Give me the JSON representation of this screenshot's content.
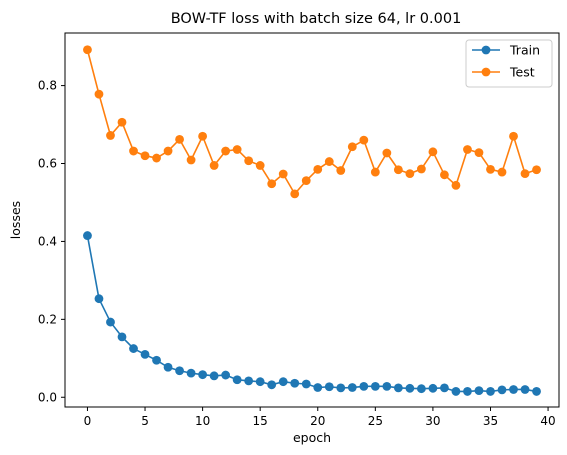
{
  "chart_data": {
    "type": "line",
    "title": "BOW-TF loss with batch size 64, lr 0.001",
    "xlabel": "epoch",
    "ylabel": "losses",
    "xlim": [
      -1.95,
      40.95
    ],
    "ylim": [
      -0.025,
      0.935
    ],
    "xticks": [
      0,
      5,
      10,
      15,
      20,
      25,
      30,
      35,
      40
    ],
    "xtick_labels": [
      "0",
      "5",
      "10",
      "15",
      "20",
      "25",
      "30",
      "35",
      "40"
    ],
    "yticks": [
      0.0,
      0.2,
      0.4,
      0.6,
      0.8
    ],
    "ytick_labels": [
      "0.0",
      "0.2",
      "0.4",
      "0.6",
      "0.8"
    ],
    "grid": false,
    "legend_position": "top-right",
    "x": [
      0,
      1,
      2,
      3,
      4,
      5,
      6,
      7,
      8,
      9,
      10,
      11,
      12,
      13,
      14,
      15,
      16,
      17,
      18,
      19,
      20,
      21,
      22,
      23,
      24,
      25,
      26,
      27,
      28,
      29,
      30,
      31,
      32,
      33,
      34,
      35,
      36,
      37,
      38,
      39
    ],
    "series": [
      {
        "name": "Train",
        "color": "#1f77b4",
        "values": [
          0.415,
          0.253,
          0.193,
          0.155,
          0.125,
          0.11,
          0.095,
          0.077,
          0.068,
          0.062,
          0.058,
          0.055,
          0.057,
          0.045,
          0.042,
          0.04,
          0.032,
          0.04,
          0.036,
          0.034,
          0.025,
          0.027,
          0.024,
          0.025,
          0.028,
          0.028,
          0.028,
          0.024,
          0.023,
          0.022,
          0.023,
          0.024,
          0.015,
          0.015,
          0.017,
          0.015,
          0.019,
          0.02,
          0.02,
          0.015
        ]
      },
      {
        "name": "Test",
        "color": "#ff7f0e",
        "values": [
          0.892,
          0.778,
          0.672,
          0.706,
          0.632,
          0.62,
          0.614,
          0.632,
          0.662,
          0.609,
          0.67,
          0.595,
          0.632,
          0.636,
          0.607,
          0.595,
          0.548,
          0.573,
          0.522,
          0.556,
          0.585,
          0.605,
          0.582,
          0.643,
          0.66,
          0.578,
          0.627,
          0.584,
          0.574,
          0.586,
          0.63,
          0.571,
          0.544,
          0.636,
          0.628,
          0.585,
          0.578,
          0.67,
          0.574,
          0.584
        ]
      }
    ]
  }
}
